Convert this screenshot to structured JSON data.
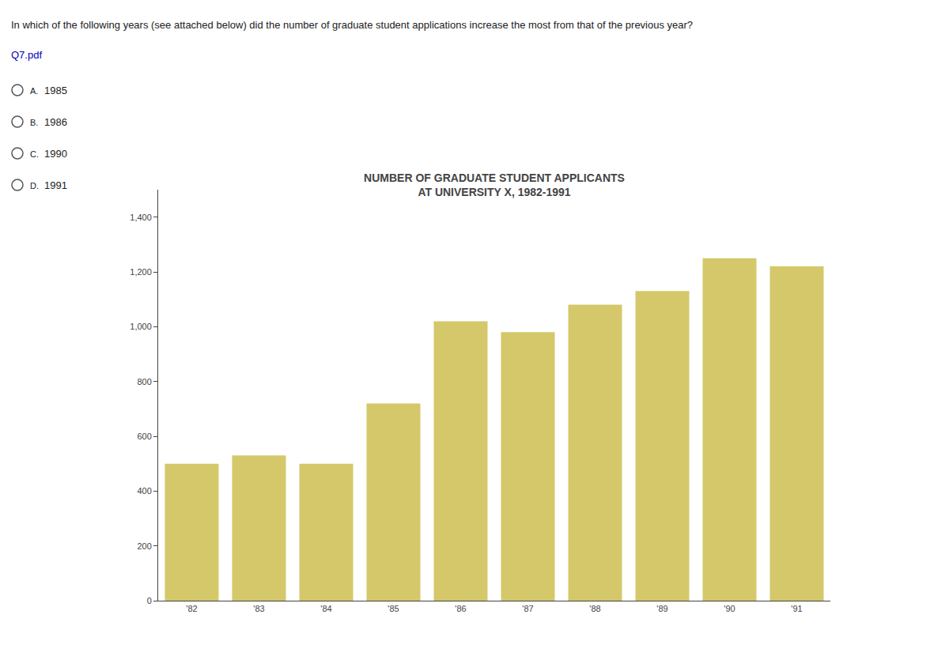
{
  "chart_data": {
    "type": "bar",
    "title": "NUMBER OF GRADUATE STUDENT APPLICANTS\nAT UNIVERSITY X, 1982-1991",
    "categories": [
      "'82",
      "'83",
      "'84",
      "'85",
      "'86",
      "'87",
      "'88",
      "'89",
      "'90",
      "'91"
    ],
    "values": [
      500,
      530,
      500,
      720,
      1020,
      980,
      1080,
      1130,
      1250,
      1220
    ],
    "color": "#d4c86a",
    "ylim": [
      0,
      1500
    ],
    "yticks": [
      0,
      200,
      400,
      600,
      800,
      {
        "value": 1000,
        "label": "1,000"
      },
      {
        "value": 1200,
        "label": "1,200"
      },
      {
        "value": 1400,
        "label": "1,400"
      }
    ],
    "grid": false,
    "annotations": [
      "In which of the following years (see attached below) did the number of graduate student applications increase the most from that of the previous year?",
      "Q7.pdf",
      "A.",
      "1985",
      "B.",
      "1986",
      "C.",
      "1990",
      "D.",
      "1991"
    ]
  }
}
